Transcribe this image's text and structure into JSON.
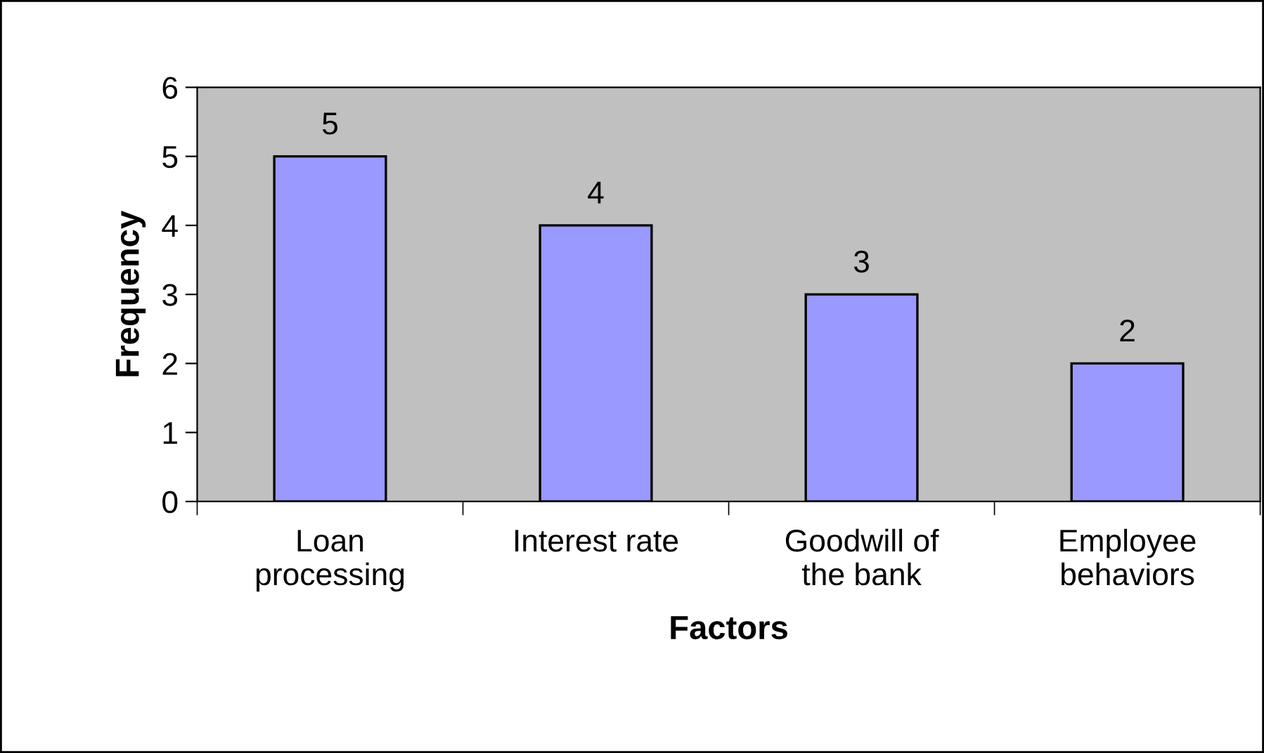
{
  "chart_data": {
    "type": "bar",
    "xlabel": "Factors",
    "ylabel": "Frequency",
    "categories": [
      "Loan\nprocessing",
      "Interest rate",
      "Goodwill of\nthe bank",
      "Employee\nbehaviors"
    ],
    "values": [
      5,
      4,
      3,
      2
    ],
    "color": "#9999ff",
    "ylim": [
      0,
      6
    ],
    "yticks": [
      0,
      1,
      2,
      3,
      4,
      5,
      6
    ],
    "grid": false,
    "legend": false,
    "data_labels": true
  }
}
